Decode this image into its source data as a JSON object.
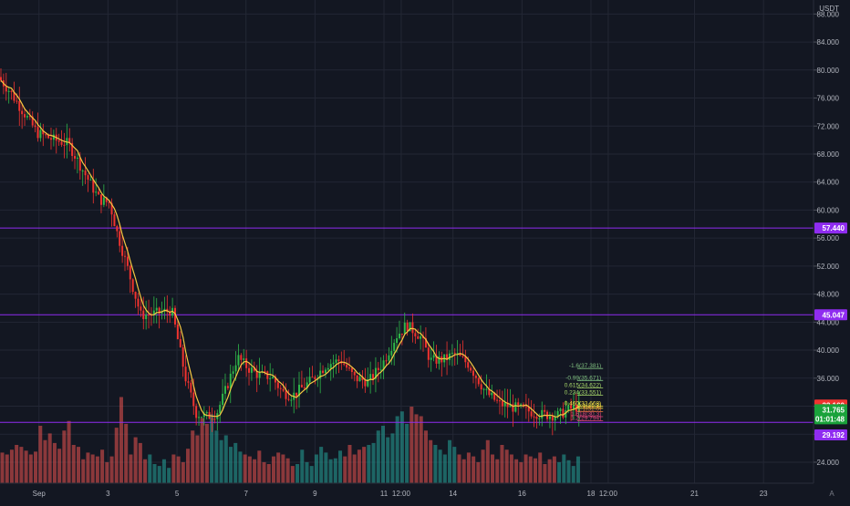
{
  "currency_label": "USDT",
  "colors": {
    "background": "#131722",
    "grid": "#232734",
    "up": "#26a69a",
    "down": "#ef5350",
    "candle_up": "#2fb84a",
    "candle_down": "#f0332f",
    "ma": "#f5c842",
    "hline": "#8f2cf0",
    "fib": "#7fbf7f"
  },
  "chart_data": {
    "type": "candlestick",
    "y_axis": {
      "ticks": [
        "88.000",
        "84.000",
        "80.000",
        "76.000",
        "72.000",
        "68.000",
        "64.000",
        "60.000",
        "56.000",
        "52.000",
        "48.000",
        "44.000",
        "40.000",
        "36.000",
        "32.000",
        "28.000",
        "24.000"
      ],
      "ylim": [
        21,
        90
      ]
    },
    "x_axis": {
      "ticks": [
        {
          "label": "Sep",
          "day": 0
        },
        {
          "label": "3",
          "day": 2
        },
        {
          "label": "5",
          "day": 4
        },
        {
          "label": "7",
          "day": 6
        },
        {
          "label": "9",
          "day": 8
        },
        {
          "label": "11",
          "day": 10
        },
        {
          "label": "12:00",
          "day": 10.5
        },
        {
          "label": "14",
          "day": 12
        },
        {
          "label": "16",
          "day": 14
        },
        {
          "label": "18",
          "day": 16
        },
        {
          "label": "12:00",
          "day": 16.5
        },
        {
          "label": "21",
          "day": 19
        },
        {
          "label": "23",
          "day": 21
        }
      ],
      "xlim": [
        -1.13,
        22.45
      ]
    },
    "price_path": [
      [
        -1.13,
        79
      ],
      [
        -0.8,
        77
      ],
      [
        -0.4,
        74
      ],
      [
        0,
        71
      ],
      [
        0.5,
        70
      ],
      [
        0.9,
        69.5
      ],
      [
        1.4,
        65
      ],
      [
        1.8,
        61.5
      ],
      [
        2.1,
        61
      ],
      [
        2.3,
        57
      ],
      [
        2.6,
        52
      ],
      [
        3.0,
        45
      ],
      [
        3.4,
        45.2
      ],
      [
        3.9,
        45.7
      ],
      [
        4.3,
        36
      ],
      [
        4.6,
        31
      ],
      [
        4.9,
        30.5
      ],
      [
        5.2,
        31
      ],
      [
        5.4,
        33.5
      ],
      [
        5.8,
        39
      ],
      [
        6.1,
        37.5
      ],
      [
        6.4,
        36.5
      ],
      [
        6.8,
        36.2
      ],
      [
        7.1,
        34
      ],
      [
        7.4,
        33.5
      ],
      [
        7.9,
        35.5
      ],
      [
        8.4,
        38
      ],
      [
        8.8,
        38.6
      ],
      [
        9.2,
        36
      ],
      [
        9.6,
        35.5
      ],
      [
        10.0,
        38
      ],
      [
        10.4,
        42
      ],
      [
        10.7,
        43.6
      ],
      [
        11.1,
        42
      ],
      [
        11.4,
        38.5
      ],
      [
        11.8,
        38.7
      ],
      [
        12.1,
        39.5
      ],
      [
        12.5,
        38
      ],
      [
        13.0,
        34
      ],
      [
        13.4,
        32.3
      ],
      [
        14.1,
        31.5
      ],
      [
        14.6,
        30.8
      ],
      [
        15.1,
        30.7
      ],
      [
        15.4,
        31.5
      ],
      [
        15.7,
        32
      ]
    ],
    "ma_color": "#f5c842",
    "volume": {
      "description_scale_max": 1.0,
      "values": [
        0.32,
        0.3,
        0.35,
        0.4,
        0.38,
        0.34,
        0.3,
        0.33,
        0.6,
        0.45,
        0.52,
        0.42,
        0.36,
        0.55,
        0.65,
        0.4,
        0.38,
        0.25,
        0.32,
        0.3,
        0.28,
        0.35,
        0.22,
        0.28,
        0.58,
        0.9,
        0.62,
        0.3,
        0.48,
        0.42,
        0.25,
        0.3,
        0.2,
        0.18,
        0.25,
        0.16,
        0.3,
        0.28,
        0.22,
        0.36,
        0.55,
        0.5,
        0.68,
        0.62,
        0.72,
        0.55,
        0.45,
        0.5,
        0.38,
        0.42,
        0.33,
        0.3,
        0.28,
        0.25,
        0.34,
        0.22,
        0.2,
        0.28,
        0.32,
        0.3,
        0.26,
        0.18,
        0.2,
        0.35,
        0.22,
        0.18,
        0.3,
        0.38,
        0.32,
        0.25,
        0.26,
        0.34,
        0.28,
        0.4,
        0.3,
        0.35,
        0.38,
        0.4,
        0.42,
        0.55,
        0.6,
        0.48,
        0.52,
        0.7,
        0.75,
        0.62,
        0.8,
        0.72,
        0.7,
        0.55,
        0.45,
        0.4,
        0.35,
        0.3,
        0.45,
        0.38,
        0.3,
        0.25,
        0.32,
        0.28,
        0.22,
        0.35,
        0.45,
        0.3,
        0.25,
        0.4,
        0.35,
        0.3,
        0.25,
        0.22,
        0.3,
        0.28,
        0.26,
        0.32,
        0.2,
        0.25,
        0.28,
        0.22,
        0.3,
        0.24,
        0.18,
        0.28
      ]
    },
    "horizontal_lines": [
      {
        "value": 57.44,
        "label": "57.440",
        "color": "#8f2cf0"
      },
      {
        "value": 45.047,
        "label": "45.047",
        "color": "#8f2cf0"
      },
      {
        "value": 29.69,
        "label": "",
        "color": "#8f2cf0"
      }
    ],
    "price_tags": [
      {
        "value": 32.16,
        "label": "32.160",
        "bg": "#f0332f",
        "fg": "#ffffff"
      },
      {
        "value": 31.5,
        "label": "31.765",
        "bg": "#1aa23b",
        "fg": "#ffffff"
      },
      {
        "value": 30.2,
        "label": "01:01:48",
        "bg": "#1aa23b",
        "fg": "#ffffff"
      },
      {
        "value": 27.9,
        "label": "29.192",
        "bg": "#8f2cf0",
        "fg": "#ffffff"
      }
    ],
    "fib_levels": [
      {
        "value": 37.381,
        "label": "-1.6(37.381)",
        "color": "#7fbf7f"
      },
      {
        "value": 35.671,
        "label": "-0.99(35.671)",
        "color": "#7fbf7f"
      },
      {
        "value": 34.622,
        "label": "0.615(34.622)",
        "color": "#a8d86a"
      },
      {
        "value": 33.551,
        "label": "0.234(33.551)",
        "color": "#a8d86a"
      },
      {
        "value": 32.0,
        "label": "0.460(32.668)",
        "color": "#f5e342"
      },
      {
        "value": 31.7,
        "label": "0.1(31.3)",
        "color": "#f5e342"
      },
      {
        "value": 31.2,
        "label": "1.1(31.0)",
        "color": "#f07a3a"
      },
      {
        "value": 30.5,
        "label": "1.618(30.3)",
        "color": "#e0447a"
      },
      {
        "value": 29.9,
        "label": "1.2(29.794)",
        "color": "#e0447a"
      }
    ]
  }
}
